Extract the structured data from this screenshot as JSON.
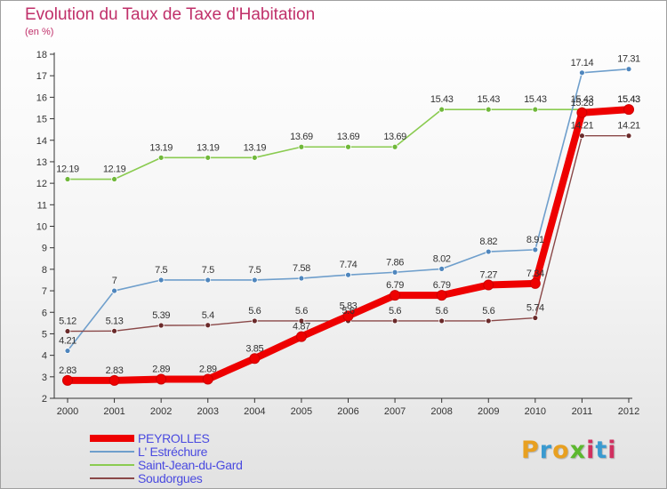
{
  "header": {
    "title": "Evolution du Taux de Taxe d'Habitation",
    "unit": "(en %)"
  },
  "brand": {
    "text": "Proxiti",
    "letters": [
      "P",
      "r",
      "o",
      "x",
      "i",
      "t",
      "i"
    ],
    "colors": [
      "#e8a020",
      "#3a9ad0",
      "#e8a020",
      "#5cb82e",
      "#d03060",
      "#3a9ad0",
      "#d03060"
    ]
  },
  "chart_data": {
    "type": "line",
    "title": "Evolution du Taux de Taxe d'Habitation",
    "ylabel": "(en %)",
    "xlabel": "",
    "x": [
      2000,
      2001,
      2002,
      2003,
      2004,
      2005,
      2006,
      2007,
      2008,
      2009,
      2010,
      2011,
      2012
    ],
    "ylim": [
      2,
      18
    ],
    "yticks": [
      2,
      3,
      4,
      5,
      6,
      7,
      8,
      9,
      10,
      11,
      12,
      13,
      14,
      15,
      16,
      17,
      18
    ],
    "grid": false,
    "legend_position": "bottom-left",
    "series": [
      {
        "name": "Saint-Jean-du-Gard",
        "color": "#8acb50",
        "dot": "#70b83a",
        "width": 1.6,
        "values": [
          12.19,
          12.19,
          13.19,
          13.19,
          13.19,
          13.69,
          13.69,
          13.69,
          15.43,
          15.43,
          15.43,
          15.43,
          15.43
        ]
      },
      {
        "name": "L' Estréchure",
        "color": "#6f9fcc",
        "dot": "#4f86bd",
        "width": 1.6,
        "values": [
          4.21,
          7,
          7.5,
          7.5,
          7.5,
          7.58,
          7.74,
          7.86,
          8.02,
          8.82,
          8.91,
          17.14,
          17.31
        ]
      },
      {
        "name": "Soudorgues",
        "color": "#8a4848",
        "dot": "#6a2a2a",
        "width": 1.4,
        "values": [
          5.12,
          5.13,
          5.39,
          5.4,
          5.6,
          5.6,
          5.6,
          5.6,
          5.6,
          5.6,
          5.74,
          14.21,
          14.21
        ]
      },
      {
        "name": "PEYROLLES",
        "color": "#ee0000",
        "dot": "#ee0000",
        "width": 8,
        "values": [
          2.83,
          2.83,
          2.89,
          2.89,
          3.85,
          4.87,
          5.83,
          6.79,
          6.79,
          7.27,
          7.34,
          15.28,
          15.43
        ]
      }
    ],
    "legend": [
      "PEYROLLES",
      "L' Estréchure",
      "Saint-Jean-du-Gard",
      "Soudorgues"
    ]
  }
}
